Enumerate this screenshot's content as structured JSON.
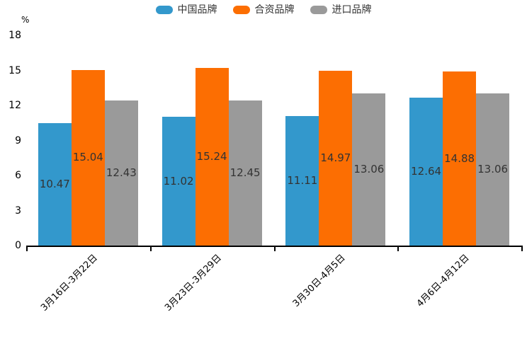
{
  "chart": {
    "unit_label": "%"
  },
  "chart_data": {
    "type": "bar",
    "title": "",
    "categories": [
      "3月16日-3月22日",
      "3月23日-3月29日",
      "3月30日-4月5日",
      "4月6日-4月12日"
    ],
    "series": [
      {
        "name": "中国品牌",
        "color": "#3398CC",
        "values": [
          10.47,
          11.02,
          11.11,
          12.64
        ]
      },
      {
        "name": "合资品牌",
        "color": "#FC6E02",
        "values": [
          15.04,
          15.24,
          14.97,
          14.88
        ]
      },
      {
        "name": "进口品牌",
        "color": "#9A9A9A",
        "values": [
          12.43,
          12.45,
          13.06,
          13.06
        ]
      }
    ],
    "xlabel": "",
    "ylabel": "%",
    "ylim": [
      0,
      18
    ],
    "yticks": [
      0,
      3,
      6,
      9,
      12,
      15,
      18
    ],
    "grid": false,
    "legend_position": "top",
    "value_labels": true,
    "value_label_color": "#333333",
    "axis_color": "#000000"
  }
}
